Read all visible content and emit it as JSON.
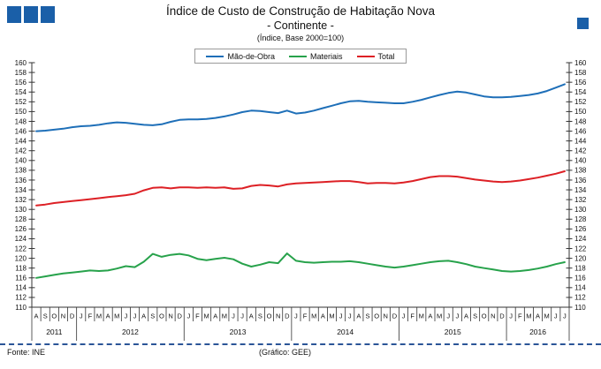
{
  "brand": {
    "logo_color": "#1A5FA8",
    "logo_square_count": 3
  },
  "header": {
    "title": "Índice de Custo de Construção de Habitação Nova",
    "subtitle": "- Continente -",
    "caption": "(Índice, Base 2000=100)"
  },
  "footer": {
    "source": "Fonte: INE",
    "credit": "(Gráfico: GEE)"
  },
  "chart_data": {
    "type": "line",
    "title": "Índice de Custo de Construção de Habitação Nova - Continente (Índice, Base 2000=100)",
    "xlabel": "",
    "ylabel": "",
    "y_min": 110,
    "y_max": 160,
    "y_step": 2,
    "grid": false,
    "legend_position": "top",
    "axis_color": "#333333",
    "x_months": [
      "A",
      "S",
      "O",
      "N",
      "D",
      "J",
      "F",
      "M",
      "A",
      "M",
      "J",
      "J",
      "A",
      "S",
      "O",
      "N",
      "D",
      "J",
      "F",
      "M",
      "A",
      "M",
      "J",
      "J",
      "A",
      "S",
      "O",
      "N",
      "D",
      "J",
      "F",
      "M",
      "A",
      "M",
      "J",
      "J",
      "A",
      "S",
      "O",
      "N",
      "D",
      "J",
      "F",
      "M",
      "A",
      "M",
      "J",
      "J",
      "A",
      "S",
      "O",
      "N",
      "D",
      "J",
      "F",
      "M",
      "A",
      "M",
      "J",
      "J"
    ],
    "x_years": [
      {
        "label": "2011",
        "start": 0,
        "count": 5
      },
      {
        "label": "2012",
        "start": 5,
        "count": 12
      },
      {
        "label": "2013",
        "start": 17,
        "count": 12
      },
      {
        "label": "2014",
        "start": 29,
        "count": 12
      },
      {
        "label": "2015",
        "start": 41,
        "count": 12
      },
      {
        "label": "2016",
        "start": 53,
        "count": 7
      }
    ],
    "series": [
      {
        "name": "Mão-de-Obra",
        "color": "#1E6FB8",
        "values": [
          146.0,
          146.1,
          146.3,
          146.5,
          146.8,
          147.0,
          147.1,
          147.3,
          147.6,
          147.8,
          147.7,
          147.5,
          147.3,
          147.2,
          147.4,
          147.9,
          148.3,
          148.4,
          148.4,
          148.5,
          148.7,
          149.0,
          149.4,
          149.9,
          150.2,
          150.1,
          149.9,
          149.7,
          150.2,
          149.6,
          149.8,
          150.2,
          150.7,
          151.2,
          151.7,
          152.1,
          152.2,
          152.0,
          151.9,
          151.8,
          151.7,
          151.7,
          152.0,
          152.4,
          152.9,
          153.4,
          153.8,
          154.1,
          153.9,
          153.5,
          153.1,
          152.9,
          152.9,
          153.0,
          153.2,
          153.4,
          153.7,
          154.2,
          154.9,
          155.6
        ]
      },
      {
        "name": "Materiais",
        "color": "#27A24B",
        "values": [
          116.0,
          116.3,
          116.6,
          116.9,
          117.1,
          117.3,
          117.5,
          117.4,
          117.5,
          117.9,
          118.4,
          118.2,
          119.3,
          120.9,
          120.3,
          120.7,
          120.9,
          120.6,
          119.9,
          119.6,
          119.9,
          120.1,
          119.8,
          118.9,
          118.3,
          118.7,
          119.2,
          119.0,
          121.0,
          119.5,
          119.2,
          119.1,
          119.2,
          119.3,
          119.3,
          119.4,
          119.2,
          118.9,
          118.6,
          118.3,
          118.1,
          118.3,
          118.6,
          118.9,
          119.2,
          119.4,
          119.5,
          119.2,
          118.8,
          118.3,
          118.0,
          117.7,
          117.4,
          117.3,
          117.4,
          117.6,
          117.9,
          118.3,
          118.8,
          119.2
        ]
      },
      {
        "name": "Total",
        "color": "#DD2025",
        "values": [
          130.8,
          131.0,
          131.3,
          131.5,
          131.7,
          131.9,
          132.1,
          132.3,
          132.5,
          132.7,
          132.9,
          133.2,
          133.9,
          134.4,
          134.5,
          134.3,
          134.5,
          134.5,
          134.4,
          134.5,
          134.4,
          134.5,
          134.2,
          134.3,
          134.8,
          135.0,
          134.9,
          134.7,
          135.1,
          135.3,
          135.4,
          135.5,
          135.6,
          135.7,
          135.8,
          135.8,
          135.6,
          135.3,
          135.4,
          135.4,
          135.3,
          135.5,
          135.8,
          136.2,
          136.6,
          136.8,
          136.8,
          136.7,
          136.4,
          136.1,
          135.9,
          135.7,
          135.6,
          135.7,
          135.9,
          136.2,
          136.5,
          136.9,
          137.3,
          137.8
        ]
      }
    ]
  }
}
